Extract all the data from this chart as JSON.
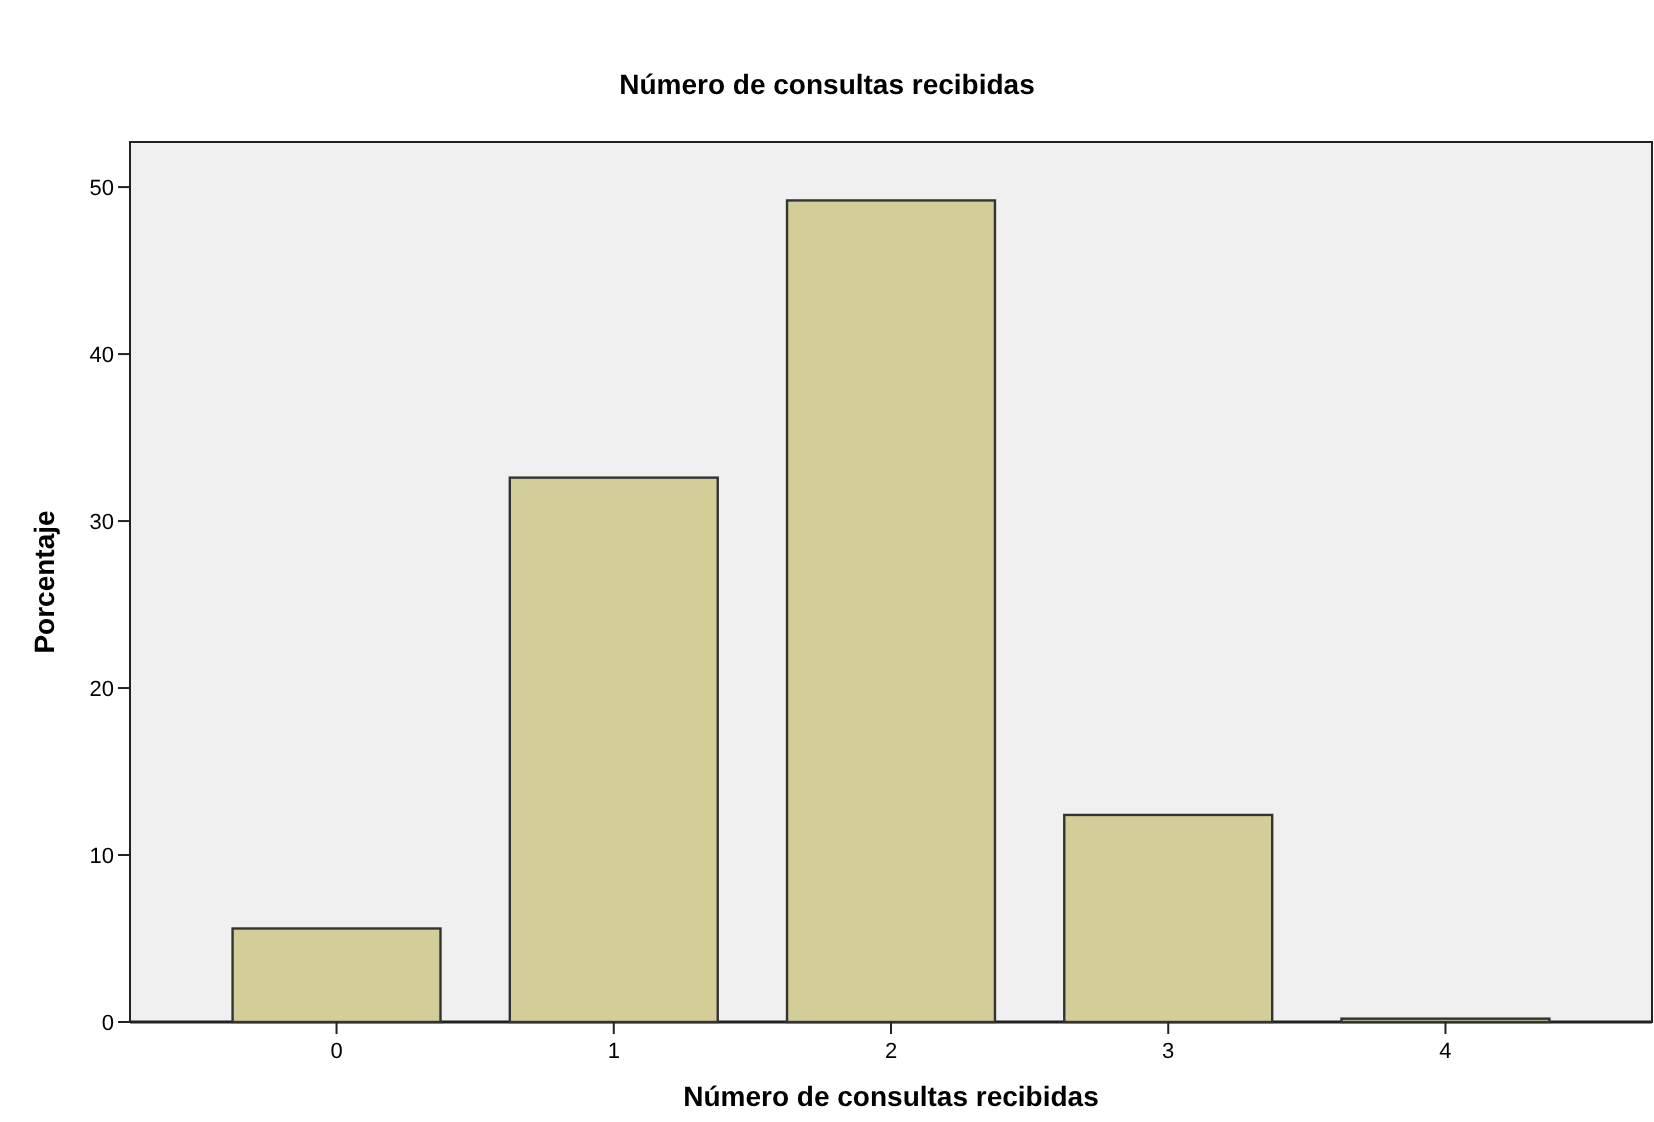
{
  "chart_data": {
    "type": "bar",
    "title": "Número de consultas recibidas",
    "xlabel": "Número de consultas recibidas",
    "ylabel": "Porcentaje",
    "categories": [
      "0",
      "1",
      "2",
      "3",
      "4"
    ],
    "values": [
      5.6,
      32.6,
      49.2,
      12.4,
      0.2
    ],
    "color": "#d3ce98",
    "ylim": [
      0,
      52.7
    ],
    "yticks": [
      0,
      10,
      20,
      30,
      40,
      50
    ],
    "grid": false
  }
}
